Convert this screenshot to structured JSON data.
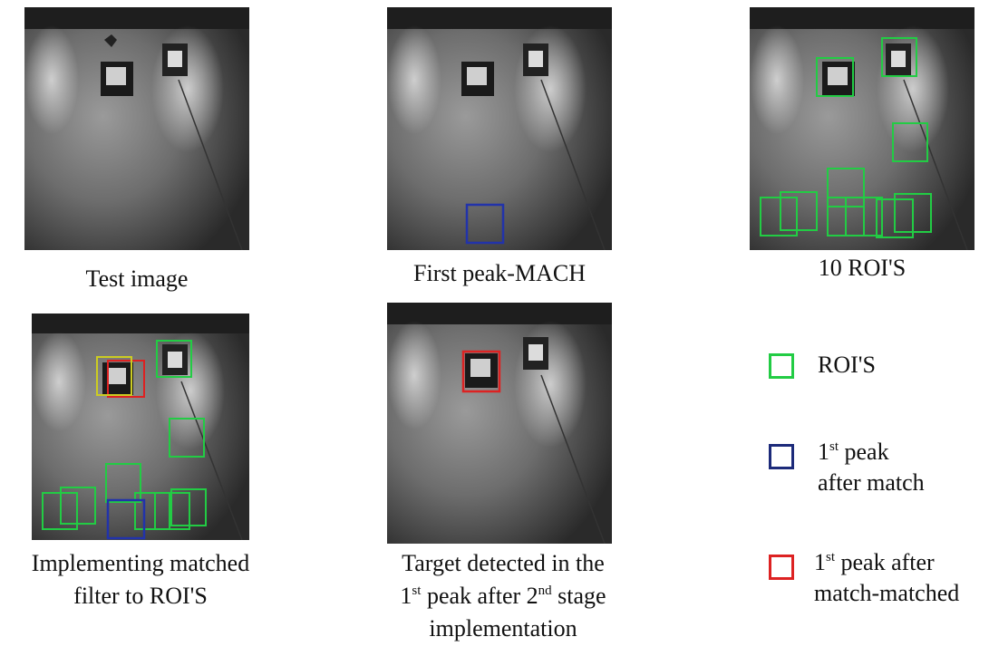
{
  "panels": [
    {
      "id": "test",
      "caption_lines": [
        "Test image"
      ]
    },
    {
      "id": "first_peak",
      "caption_lines": [
        "First peak-MACH"
      ]
    },
    {
      "id": "ten_rois",
      "caption_lines": [
        "10 ROI'S"
      ]
    },
    {
      "id": "matched",
      "caption_lines": [
        "Implementing matched",
        "filter to ROI'S"
      ]
    },
    {
      "id": "detected",
      "caption_lines": [
        "Target detected in the",
        "1|st| peak after 2|nd| stage",
        "implementation"
      ]
    }
  ],
  "legend": [
    {
      "label_lines": [
        "ROI'S"
      ],
      "color": "#22cc44"
    },
    {
      "label_lines": [
        "1|st| peak",
        "after match"
      ],
      "color": "#1c2a7a"
    },
    {
      "label_lines": [
        "1|st| peak after",
        "match-matched"
      ],
      "color": "#dd2222"
    }
  ],
  "box_colors": {
    "roi": "#22cc44",
    "first_peak": "#2233aa",
    "matched": "#dd2222",
    "overlap": "#cccc22"
  }
}
